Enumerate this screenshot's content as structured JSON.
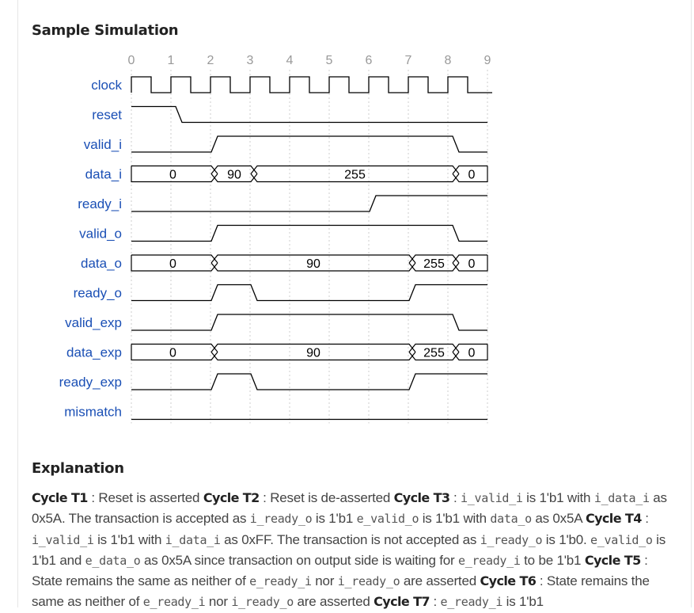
{
  "headings": {
    "simulation": "Sample Simulation",
    "explanation": "Explanation"
  },
  "chart_data": {
    "type": "timing-diagram",
    "cycles": [
      "0",
      "1",
      "2",
      "3",
      "4",
      "5",
      "6",
      "7",
      "8",
      "9"
    ],
    "signals": [
      {
        "name": "clock",
        "kind": "clock",
        "periods": 9
      },
      {
        "name": "reset",
        "kind": "bit",
        "changes": [
          [
            0,
            1
          ],
          [
            1.2,
            0
          ]
        ]
      },
      {
        "name": "valid_i",
        "kind": "bit",
        "changes": [
          [
            0,
            0
          ],
          [
            2.1,
            1
          ],
          [
            8.2,
            0
          ]
        ]
      },
      {
        "name": "data_i",
        "kind": "bus",
        "segments": [
          {
            "from": 0,
            "to": 2.1,
            "label": "0"
          },
          {
            "from": 2.1,
            "to": 3.1,
            "label": "90"
          },
          {
            "from": 3.1,
            "to": 8.2,
            "label": "255"
          },
          {
            "from": 8.2,
            "to": 9,
            "label": "0"
          }
        ]
      },
      {
        "name": "ready_i",
        "kind": "bit",
        "changes": [
          [
            0,
            0
          ],
          [
            6.1,
            1
          ]
        ]
      },
      {
        "name": "valid_o",
        "kind": "bit",
        "changes": [
          [
            0,
            0
          ],
          [
            2.1,
            1
          ],
          [
            8.2,
            0
          ]
        ]
      },
      {
        "name": "data_o",
        "kind": "bus",
        "segments": [
          {
            "from": 0,
            "to": 2.1,
            "label": "0"
          },
          {
            "from": 2.1,
            "to": 7.1,
            "label": "90"
          },
          {
            "from": 7.1,
            "to": 8.2,
            "label": "255"
          },
          {
            "from": 8.2,
            "to": 9,
            "label": "0"
          }
        ]
      },
      {
        "name": "ready_o",
        "kind": "bit",
        "changes": [
          [
            0,
            0
          ],
          [
            2.1,
            1
          ],
          [
            3.1,
            0
          ],
          [
            7.1,
            1
          ]
        ]
      },
      {
        "name": "valid_exp",
        "kind": "bit",
        "changes": [
          [
            0,
            0
          ],
          [
            2.1,
            1
          ],
          [
            8.2,
            0
          ]
        ]
      },
      {
        "name": "data_exp",
        "kind": "bus",
        "segments": [
          {
            "from": 0,
            "to": 2.1,
            "label": "0"
          },
          {
            "from": 2.1,
            "to": 7.1,
            "label": "90"
          },
          {
            "from": 7.1,
            "to": 8.2,
            "label": "255"
          },
          {
            "from": 8.2,
            "to": 9,
            "label": "0"
          }
        ]
      },
      {
        "name": "ready_exp",
        "kind": "bit",
        "changes": [
          [
            0,
            0
          ],
          [
            2.1,
            1
          ],
          [
            3.1,
            0
          ],
          [
            7.1,
            1
          ]
        ]
      },
      {
        "name": "mismatch",
        "kind": "bit",
        "changes": [
          [
            0,
            0
          ]
        ]
      }
    ]
  },
  "explanation": {
    "segments": [
      {
        "t": "b",
        "v": "Cycle T1"
      },
      {
        "t": "n",
        "v": " : Reset is asserted "
      },
      {
        "t": "b",
        "v": "Cycle T2"
      },
      {
        "t": "n",
        "v": " : Reset is de-asserted "
      },
      {
        "t": "b",
        "v": "Cycle T3"
      },
      {
        "t": "n",
        "v": " : "
      },
      {
        "t": "c",
        "v": "i_valid_i"
      },
      {
        "t": "n",
        "v": " is 1'b1 with "
      },
      {
        "t": "c",
        "v": "i_data_i"
      },
      {
        "t": "n",
        "v": " as 0x5A. The transaction is accepted as "
      },
      {
        "t": "c",
        "v": "i_ready_o"
      },
      {
        "t": "n",
        "v": " is 1'b1 "
      },
      {
        "t": "c",
        "v": "e_valid_o"
      },
      {
        "t": "n",
        "v": " is 1'b1 with "
      },
      {
        "t": "c",
        "v": "data_o"
      },
      {
        "t": "n",
        "v": " as 0x5A "
      },
      {
        "t": "b",
        "v": "Cycle T4"
      },
      {
        "t": "n",
        "v": " : "
      },
      {
        "t": "c",
        "v": "i_valid_i"
      },
      {
        "t": "n",
        "v": " is 1'b1 with "
      },
      {
        "t": "c",
        "v": "i_data_i"
      },
      {
        "t": "n",
        "v": " as 0xFF. The transaction is not accepted as "
      },
      {
        "t": "c",
        "v": "i_ready_o"
      },
      {
        "t": "n",
        "v": " is 1'b0. "
      },
      {
        "t": "c",
        "v": "e_valid_o"
      },
      {
        "t": "n",
        "v": " is 1'b1 and "
      },
      {
        "t": "c",
        "v": "e_data_o"
      },
      {
        "t": "n",
        "v": " as 0x5A since transaction on output side is waiting for "
      },
      {
        "t": "c",
        "v": "e_ready_i"
      },
      {
        "t": "n",
        "v": " to be 1'b1 "
      },
      {
        "t": "b",
        "v": "Cycle T5"
      },
      {
        "t": "n",
        "v": " : State remains the same as neither of "
      },
      {
        "t": "c",
        "v": "e_ready_i"
      },
      {
        "t": "n",
        "v": " nor "
      },
      {
        "t": "c",
        "v": "i_ready_o"
      },
      {
        "t": "n",
        "v": " are asserted "
      },
      {
        "t": "b",
        "v": "Cycle T6"
      },
      {
        "t": "n",
        "v": " : State remains the same as neither of "
      },
      {
        "t": "c",
        "v": "e_ready_i"
      },
      {
        "t": "n",
        "v": " nor "
      },
      {
        "t": "c",
        "v": "i_ready_o"
      },
      {
        "t": "n",
        "v": " are asserted "
      },
      {
        "t": "b",
        "v": "Cycle T7"
      },
      {
        "t": "n",
        "v": " : "
      },
      {
        "t": "c",
        "v": "e_ready_i"
      },
      {
        "t": "n",
        "v": " is 1'b1"
      }
    ]
  },
  "colors": {
    "signal_label": "#1a4fb5",
    "tick_label": "#999999",
    "wave": "#000000",
    "grid": "#cccccc"
  }
}
